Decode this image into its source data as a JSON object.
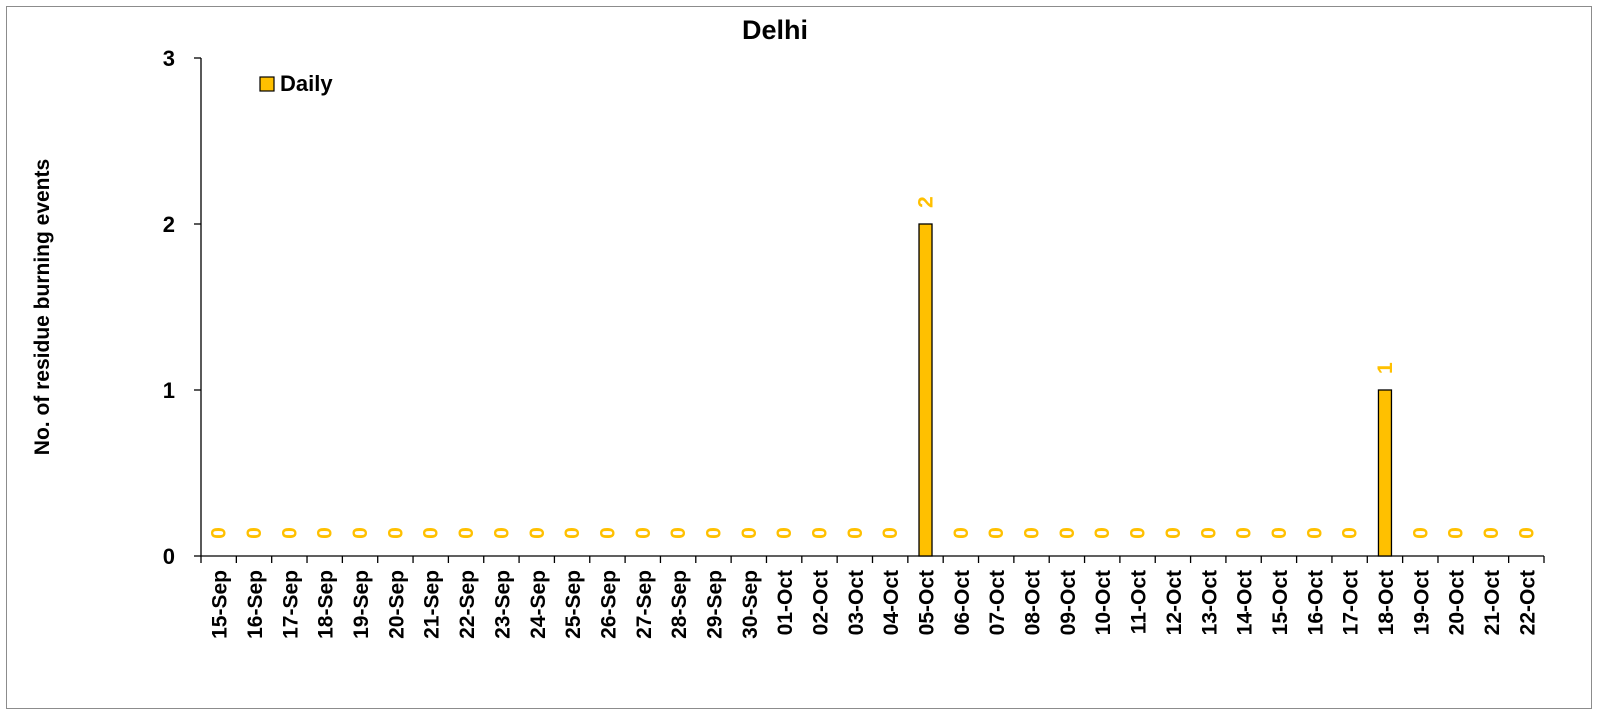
{
  "chart_data": {
    "type": "bar",
    "title": "Delhi",
    "xlabel": "",
    "ylabel": "No. of residue burning events",
    "ylim": [
      0,
      3
    ],
    "yticks": [
      "0",
      "1",
      "2",
      "3"
    ],
    "grid": false,
    "legend_position": "top-left",
    "categories": [
      "15-Sep",
      "16-Sep",
      "17-Sep",
      "18-Sep",
      "19-Sep",
      "20-Sep",
      "21-Sep",
      "22-Sep",
      "23-Sep",
      "24-Sep",
      "25-Sep",
      "26-Sep",
      "27-Sep",
      "28-Sep",
      "29-Sep",
      "30-Sep",
      "01-Oct",
      "02-Oct",
      "03-Oct",
      "04-Oct",
      "05-Oct",
      "06-Oct",
      "07-Oct",
      "08-Oct",
      "09-Oct",
      "10-Oct",
      "11-Oct",
      "12-Oct",
      "13-Oct",
      "14-Oct",
      "15-Oct",
      "16-Oct",
      "17-Oct",
      "18-Oct",
      "19-Oct",
      "20-Oct",
      "21-Oct",
      "22-Oct"
    ],
    "series": [
      {
        "name": "Daily",
        "color": "#FFC000",
        "values": [
          0,
          0,
          0,
          0,
          0,
          0,
          0,
          0,
          0,
          0,
          0,
          0,
          0,
          0,
          0,
          0,
          0,
          0,
          0,
          0,
          2,
          0,
          0,
          0,
          0,
          0,
          0,
          0,
          0,
          0,
          0,
          0,
          0,
          1,
          0,
          0,
          0,
          0
        ]
      }
    ],
    "data_label_color": "#FFC000",
    "bar_edge_color": "#000000"
  }
}
